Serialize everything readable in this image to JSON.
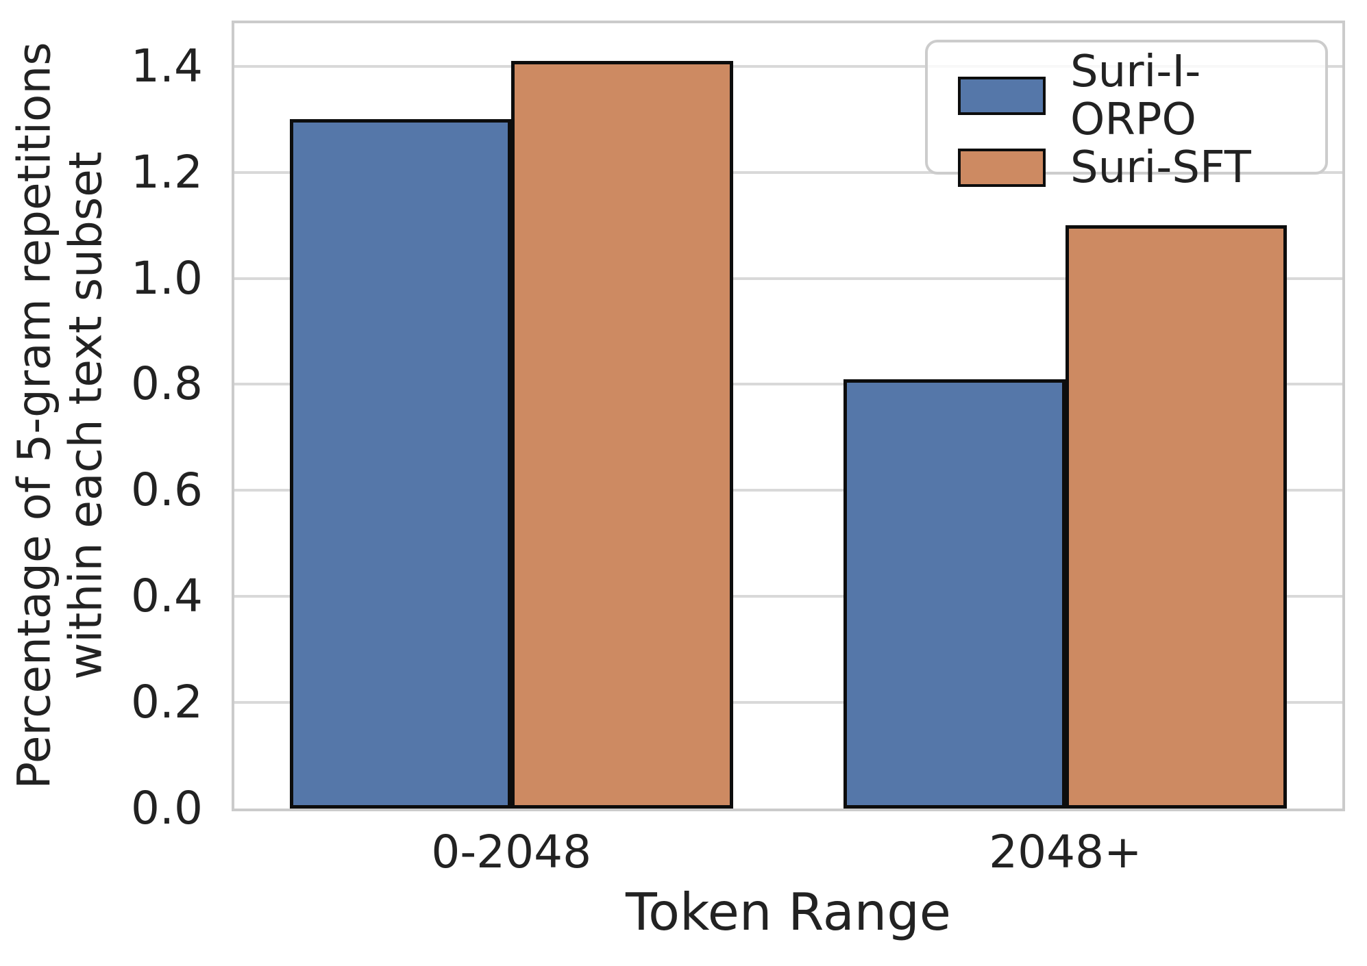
{
  "chart_data": {
    "type": "bar",
    "title": "",
    "xlabel": "Token Range",
    "ylabel": "Percentage of 5-gram repetitions\nwithin each text subset",
    "categories": [
      "0-2048",
      "2048+"
    ],
    "series": [
      {
        "name": "Suri-I-ORPO",
        "color": "#5577A9",
        "values": [
          1.3,
          0.81
        ]
      },
      {
        "name": "Suri-SFT",
        "color": "#CD8A62",
        "values": [
          1.41,
          1.1
        ]
      }
    ],
    "ylim": [
      0,
      1.481
    ],
    "yticks": [
      0.0,
      0.2,
      0.4,
      0.6,
      0.8,
      1.0,
      1.2,
      1.4
    ],
    "ytick_format_decimals": 1,
    "grid": true,
    "grid_axis": "y",
    "legend_position": "upper right",
    "bar_edge_color": "#0d0d0d",
    "bar_group_width_fraction": 0.8
  }
}
